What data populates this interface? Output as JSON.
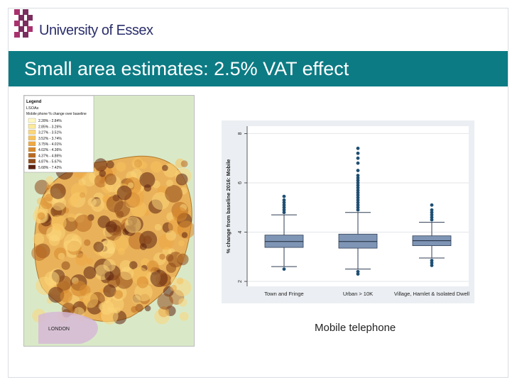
{
  "header": {
    "logo_text": "University of Essex",
    "brand_color": "#2b2f6b",
    "logo_accent_color": "#7b2d5f"
  },
  "slide": {
    "title": "Small area estimates: 2.5% VAT effect",
    "title_bar_color": "#0c7b84",
    "caption": "Mobile telephone"
  },
  "map": {
    "legend_title": "Legend",
    "layer_name": "LSOAs",
    "legend_subtitle": "Mobile phone % change over baseline",
    "legend_items": [
      {
        "label": "2.28% - 2.84%",
        "color": "#fff8c2"
      },
      {
        "label": "2.85% - 3.26%",
        "color": "#fde99a"
      },
      {
        "label": "3.27% - 3.51%",
        "color": "#fbd67a"
      },
      {
        "label": "3.52% - 3.74%",
        "color": "#f7c25d"
      },
      {
        "label": "3.75% - 4.01%",
        "color": "#eea844"
      },
      {
        "label": "4.02% - 4.36%",
        "color": "#d98a2e"
      },
      {
        "label": "4.37% - 4.86%",
        "color": "#b96a22"
      },
      {
        "label": "4.87% - 5.67%",
        "color": "#8f4a1a"
      },
      {
        "label": "5.68% - 7.42%",
        "color": "#5c2210"
      }
    ],
    "city_label": "LONDON"
  },
  "chart_data": {
    "type": "box",
    "ylabel": "% change from baseline 2016: Mobile",
    "ylim": [
      1.8,
      8.3
    ],
    "yticks": [
      2,
      4,
      6,
      8
    ],
    "box_color": "#7f95b5",
    "categories": [
      "Town and Fringe",
      "Urban > 10K",
      "Village, Hamlet & Isolated Dwell"
    ],
    "boxes": [
      {
        "q1": 3.38,
        "median": 3.62,
        "q3": 3.88,
        "whisker_low": 2.6,
        "whisker_high": 4.7,
        "outliers": [
          2.5,
          4.8,
          4.9,
          5.0,
          5.1,
          5.2,
          5.3,
          5.45
        ]
      },
      {
        "q1": 3.35,
        "median": 3.62,
        "q3": 3.92,
        "whisker_low": 2.5,
        "whisker_high": 4.8,
        "outliers": [
          2.3,
          2.4,
          4.9,
          5.0,
          5.1,
          5.2,
          5.3,
          5.4,
          5.5,
          5.6,
          5.7,
          5.8,
          5.9,
          6.0,
          6.1,
          6.2,
          6.3,
          6.5,
          6.8,
          7.0,
          7.2,
          7.4
        ]
      },
      {
        "q1": 3.45,
        "median": 3.65,
        "q3": 3.85,
        "whisker_low": 2.95,
        "whisker_high": 4.4,
        "outliers": [
          2.65,
          2.75,
          2.85,
          4.5,
          4.6,
          4.7,
          4.8,
          4.9,
          5.1
        ]
      }
    ]
  }
}
